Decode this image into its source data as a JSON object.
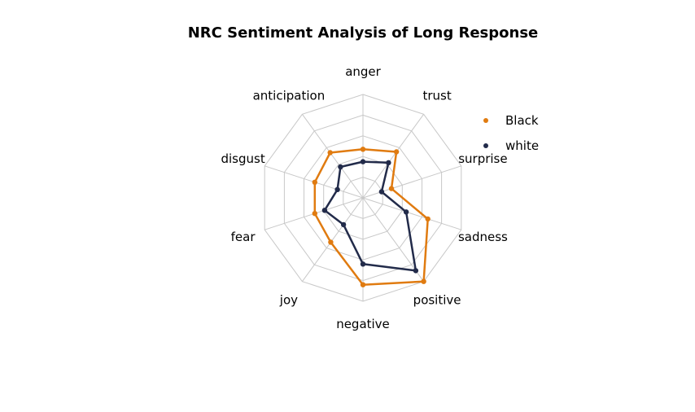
{
  "chart_data": {
    "type": "radar",
    "title": "NRC Sentiment Analysis of Long Response",
    "axes": [
      "anger",
      "trust",
      "surprise",
      "sadness",
      "positive",
      "negative",
      "joy",
      "fear",
      "disgust",
      "anticipation"
    ],
    "max": 1.0,
    "grid_levels": [
      0.2,
      0.4,
      0.6,
      0.8,
      1.0
    ],
    "grid": true,
    "legend_position": "top-right",
    "series": [
      {
        "name": "Black",
        "color": "#e07b10",
        "values": [
          0.47,
          0.55,
          0.29,
          0.66,
          1.0,
          0.84,
          0.53,
          0.49,
          0.49,
          0.54
        ]
      },
      {
        "name": "white",
        "color": "#222b4a",
        "values": [
          0.35,
          0.42,
          0.19,
          0.44,
          0.87,
          0.64,
          0.32,
          0.39,
          0.26,
          0.37
        ]
      }
    ]
  }
}
